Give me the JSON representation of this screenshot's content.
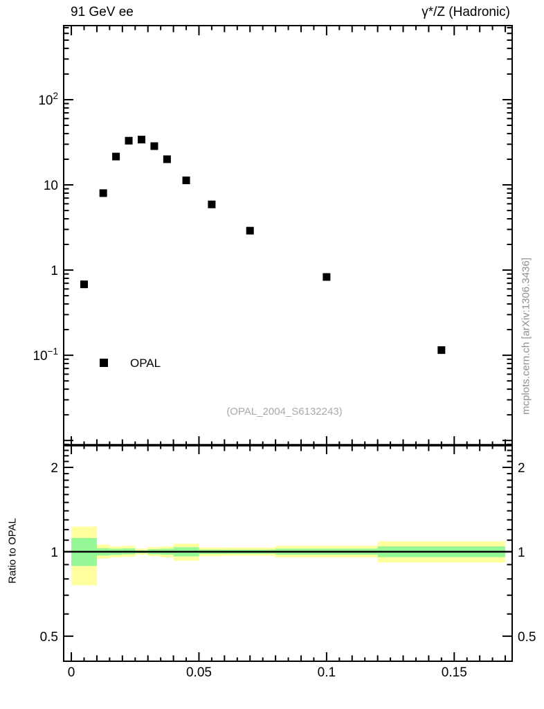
{
  "header": {
    "left_title": "91 GeV ee",
    "right_title": "γ*/Z (Hadronic)"
  },
  "watermark_label": "(OPAL_2004_S6132243)",
  "right_note": "mcplots.cern.ch [arXiv:1306.3436]",
  "legend": {
    "label": "OPAL",
    "marker": "filled-square",
    "marker_color": "#000000"
  },
  "colors": {
    "background": "#ffffff",
    "frame": "#000000",
    "marker": "#000000",
    "band_outer": "#ffff9e",
    "band_inner": "#96f796",
    "muted_text": "#999999"
  },
  "x_axis": {
    "labels": [
      {
        "value": 0,
        "label": "0"
      },
      {
        "value": 0.05,
        "label": "0.05"
      },
      {
        "value": 0.1,
        "label": "0.1"
      },
      {
        "value": 0.15,
        "label": "0.15"
      }
    ],
    "minor_step": 0.005,
    "medium_step": 0.01,
    "major_step": 0.05
  },
  "chart_data": [
    {
      "type": "scatter",
      "panel": "main",
      "xscale": "linear",
      "yscale": "log",
      "xlim": [
        -0.003,
        0.1727
      ],
      "ylim": [
        0.0088,
        740
      ],
      "grid": false,
      "ytick_labels": [
        {
          "value": 100,
          "base": "10",
          "exp": "2"
        },
        {
          "value": 10,
          "base": "10",
          "exp": ""
        },
        {
          "value": 1,
          "base": "1",
          "exp": ""
        },
        {
          "value": 0.1,
          "base": "10",
          "exp": "−1"
        }
      ],
      "series": [
        {
          "name": "OPAL",
          "marker": "filled-square",
          "color": "#000000",
          "x": [
            0.005,
            0.0125,
            0.0175,
            0.0225,
            0.0275,
            0.0325,
            0.0375,
            0.045,
            0.055,
            0.07,
            0.1,
            0.145
          ],
          "y": [
            0.68,
            8.0,
            21.5,
            33,
            34,
            28.5,
            20,
            11.3,
            5.9,
            2.9,
            0.83,
            0.115
          ]
        }
      ]
    },
    {
      "type": "band",
      "panel": "ratio",
      "ylabel": "Ratio to OPAL",
      "yscale": "log",
      "ylim": [
        0.407,
        2.4
      ],
      "reference_line": 1,
      "yticks_labeled": [
        {
          "value": 2,
          "label": "2"
        },
        {
          "value": 1,
          "label": "1"
        },
        {
          "value": 0.5,
          "label": "0.5"
        }
      ],
      "bins": [
        {
          "xlo": 0.0,
          "xhi": 0.01,
          "outer_lo": 0.76,
          "outer_hi": 1.23,
          "inner_lo": 0.89,
          "inner_hi": 1.12
        },
        {
          "xlo": 0.01,
          "xhi": 0.015,
          "outer_lo": 0.945,
          "outer_hi": 1.06,
          "inner_lo": 0.97,
          "inner_hi": 1.03
        },
        {
          "xlo": 0.015,
          "xhi": 0.02,
          "outer_lo": 0.955,
          "outer_hi": 1.045,
          "inner_lo": 0.975,
          "inner_hi": 1.025
        },
        {
          "xlo": 0.02,
          "xhi": 0.025,
          "outer_lo": 0.96,
          "outer_hi": 1.05,
          "inner_lo": 0.98,
          "inner_hi": 1.028
        },
        {
          "xlo": 0.025,
          "xhi": 0.03,
          "outer_lo": 0.977,
          "outer_hi": 1.025,
          "inner_lo": 0.988,
          "inner_hi": 1.012
        },
        {
          "xlo": 0.03,
          "xhi": 0.035,
          "outer_lo": 0.965,
          "outer_hi": 1.04,
          "inner_lo": 0.98,
          "inner_hi": 1.022
        },
        {
          "xlo": 0.035,
          "xhi": 0.04,
          "outer_lo": 0.955,
          "outer_hi": 1.045,
          "inner_lo": 0.977,
          "inner_hi": 1.025
        },
        {
          "xlo": 0.04,
          "xhi": 0.05,
          "outer_lo": 0.93,
          "outer_hi": 1.07,
          "inner_lo": 0.963,
          "inner_hi": 1.038
        },
        {
          "xlo": 0.05,
          "xhi": 0.06,
          "outer_lo": 0.965,
          "outer_hi": 1.035,
          "inner_lo": 0.982,
          "inner_hi": 1.018
        },
        {
          "xlo": 0.06,
          "xhi": 0.08,
          "outer_lo": 0.968,
          "outer_hi": 1.035,
          "inner_lo": 0.984,
          "inner_hi": 1.018
        },
        {
          "xlo": 0.08,
          "xhi": 0.12,
          "outer_lo": 0.955,
          "outer_hi": 1.05,
          "inner_lo": 0.977,
          "inner_hi": 1.026
        },
        {
          "xlo": 0.12,
          "xhi": 0.17,
          "outer_lo": 0.915,
          "outer_hi": 1.09,
          "inner_lo": 0.957,
          "inner_hi": 1.045
        }
      ]
    }
  ]
}
